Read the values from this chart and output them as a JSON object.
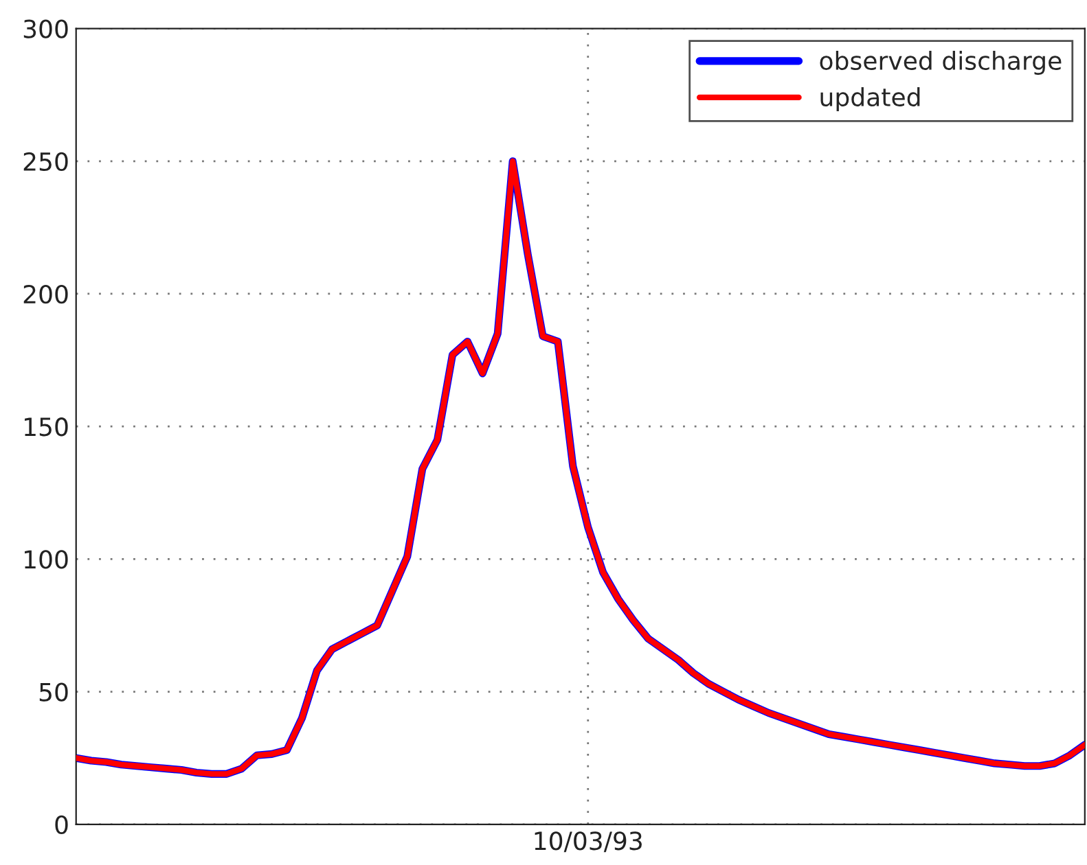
{
  "chart_data": {
    "type": "line",
    "categories": [
      null,
      null,
      null,
      null,
      null,
      null,
      null,
      null,
      null,
      null,
      null,
      null,
      null,
      null,
      null,
      null,
      null,
      null,
      null,
      null,
      null,
      null,
      null,
      null,
      null,
      null,
      null,
      null,
      null,
      null,
      null,
      null,
      null,
      null,
      "10/03/93",
      null,
      null,
      null,
      null,
      null,
      null,
      null,
      null,
      null,
      null,
      null,
      null,
      null,
      null,
      null,
      null,
      null,
      null,
      null,
      null,
      null,
      null,
      null,
      null,
      null,
      null,
      null,
      null,
      null,
      null,
      null,
      null,
      null
    ],
    "series": [
      {
        "name": "observed discharge",
        "color": "#0000ff",
        "values": [
          25,
          24,
          23.5,
          22.5,
          22,
          21.5,
          21,
          20.5,
          19.5,
          19,
          19,
          21,
          26,
          26.5,
          28,
          40,
          58,
          66,
          69,
          72,
          75,
          88,
          101,
          134,
          145,
          177,
          182,
          170,
          185,
          250,
          215,
          184,
          182,
          135,
          112,
          95,
          85,
          77,
          70,
          66,
          62,
          57,
          53,
          50,
          47,
          44.5,
          42,
          40,
          38,
          36,
          34,
          33,
          32,
          31,
          30,
          29,
          28,
          27,
          26,
          25,
          24,
          23,
          22.5,
          22,
          22,
          23,
          26,
          30
        ]
      },
      {
        "name": "updated",
        "color": "#ff0000",
        "values": [
          25,
          24,
          23.5,
          22.5,
          22,
          21.5,
          21,
          20.5,
          19.5,
          19,
          19,
          21,
          26,
          26.5,
          28,
          40,
          58,
          66,
          69,
          72,
          75,
          88,
          101,
          134,
          145,
          177,
          182,
          170,
          185,
          250,
          215,
          184,
          182,
          135,
          112,
          95,
          85,
          77,
          70,
          66,
          62,
          57,
          53,
          50,
          47,
          44.5,
          42,
          40,
          38,
          36,
          34,
          33,
          32,
          31,
          30,
          29,
          28,
          27,
          26,
          25,
          24,
          23,
          22.5,
          22,
          22,
          23,
          26,
          30
        ]
      }
    ],
    "ylim": [
      0,
      300
    ],
    "yticks": [
      0,
      50,
      100,
      150,
      200,
      250,
      300
    ],
    "grid": true,
    "legend": "top right",
    "marker": "none",
    "line_style": "solid"
  }
}
